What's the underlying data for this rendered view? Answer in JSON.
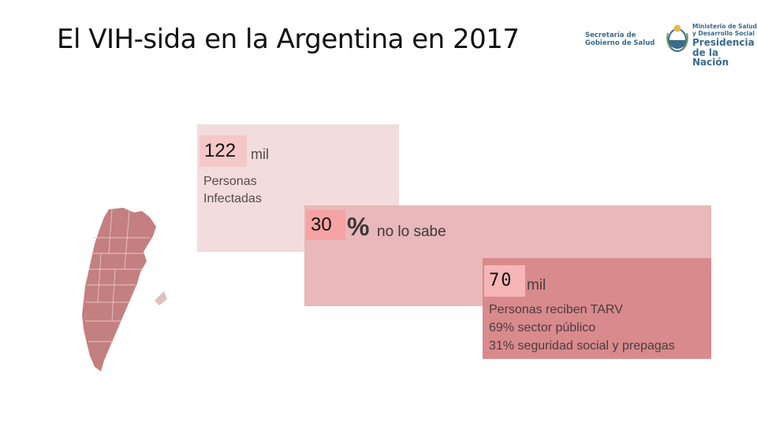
{
  "title": "El VIH-sida en la Argentina en 2017",
  "logos": {
    "secretaria": [
      "Secretaría de",
      "Gobierno de Salud"
    ],
    "ministerio": [
      "Ministerio de Salud",
      "y Desarrollo Social"
    ],
    "presidencia": [
      "Presidencia",
      "de la Nación"
    ]
  },
  "stats": {
    "infected": {
      "value": "122",
      "unit": "mil",
      "desc": [
        "Personas",
        "Infectadas"
      ]
    },
    "unaware": {
      "value": "30",
      "unit": "%",
      "desc": "no lo sabe"
    },
    "tarv": {
      "value": "70",
      "unit": "mil",
      "desc": [
        "Personas reciben TARV",
        "69% sector público",
        "31% seguridad social y prepagas"
      ]
    }
  },
  "colors": {
    "box1": "#f2dcdd",
    "box2": "#e8b8ba",
    "box3": "#d98a8d",
    "map": "#c47f80",
    "logo": "#3b6a8f"
  }
}
